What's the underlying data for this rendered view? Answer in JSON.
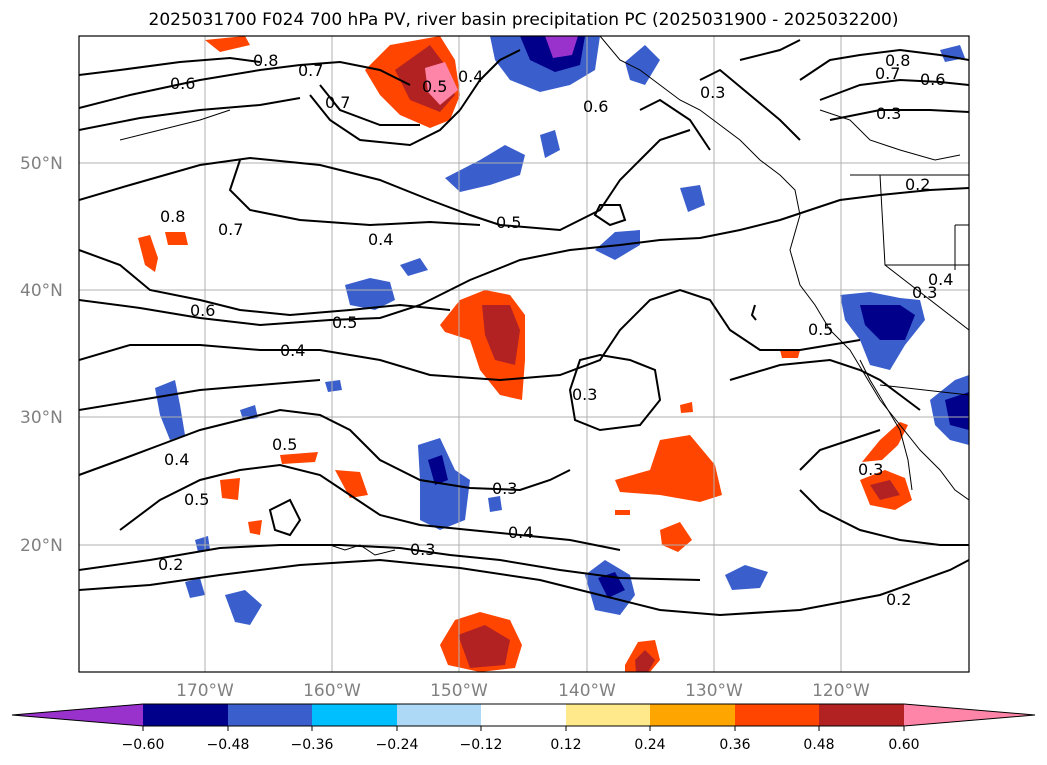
{
  "title": "2025031700 F024 700 hPa PV, river basin precipitation PC (2025031900 - 2025032200)",
  "map": {
    "lat_labels": [
      "50°N",
      "40°N",
      "30°N",
      "20°N"
    ],
    "lon_labels": [
      "170°W",
      "160°W",
      "150°W",
      "140°W",
      "130°W",
      "120°W"
    ],
    "contour_labels": [
      "0.8",
      "0.7",
      "0.6",
      "0.5",
      "0.4",
      "0.7",
      "0.6",
      "0.3",
      "0.8",
      "0.7",
      "0.6",
      "0.3",
      "0.2",
      "0.8",
      "0.7",
      "0.4",
      "0.5",
      "0.6",
      "0.5",
      "0.4",
      "0.3",
      "0.5",
      "0.4",
      "0.5",
      "0.3",
      "0.4",
      "0.3",
      "0.2",
      "0.3",
      "0.2",
      "0.5",
      "0.3",
      "0.4"
    ]
  },
  "colorbar": {
    "ticks": [
      "−0.60",
      "−0.48",
      "−0.36",
      "−0.24",
      "−0.12",
      "0.12",
      "0.24",
      "0.36",
      "0.48",
      "0.60"
    ],
    "colors": [
      "#9932cc",
      "#00008b",
      "#3a5fcd",
      "#00bfff",
      "#add8f6",
      "#ffffff",
      "#ffe98a",
      "#ffa500",
      "#ff4500",
      "#b22222",
      "#ff85a8"
    ]
  }
}
